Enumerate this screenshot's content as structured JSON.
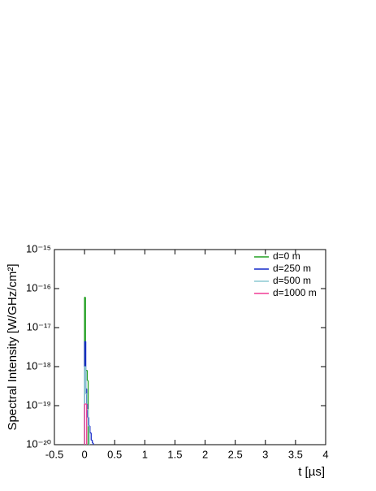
{
  "chart_data": {
    "type": "line",
    "drawstyle": "steps-post",
    "log_y": true,
    "xlabel": "t [µs]",
    "ylabel": "Spectral Intensity [W/GHz/cm²]",
    "xlim": [
      -0.5,
      4
    ],
    "xticks": [
      -0.5,
      0,
      0.5,
      1,
      1.5,
      2,
      2.5,
      3,
      3.5,
      4
    ],
    "ylim": [
      1e-20,
      1e-15
    ],
    "yticks": [
      {
        "value": 1e-20,
        "label": "10⁻²⁰"
      },
      {
        "value": 1e-19,
        "label": "10⁻¹⁹"
      },
      {
        "value": 1e-18,
        "label": "10⁻¹⁸"
      },
      {
        "value": 1e-17,
        "label": "10⁻¹⁷"
      },
      {
        "value": 1e-16,
        "label": "10⁻¹⁶"
      },
      {
        "value": 1e-15,
        "label": "10⁻¹⁵"
      }
    ],
    "legend": "upper right",
    "series": [
      {
        "name": "d=0 m",
        "color": "#22a022",
        "x": [
          0,
          0,
          0.015,
          0.045,
          0.06
        ],
        "values": [
          1e-20,
          6e-17,
          8e-19,
          4.4e-19,
          1e-20
        ]
      },
      {
        "name": "d=250 m",
        "color": "#1428c8",
        "x": [
          0,
          0,
          0.02,
          0.035,
          0.05,
          0.07,
          0.09,
          0.11,
          0.13,
          0.145
        ],
        "values": [
          1e-20,
          4.4e-18,
          2.7e-19,
          1.1e-19,
          5e-20,
          3e-20,
          2e-20,
          1.3e-20,
          1.1e-20,
          1e-20
        ]
      },
      {
        "name": "d=500 m",
        "color": "#8cc8d2",
        "x": [
          0,
          0,
          0.02,
          0.04,
          0.06,
          0.08
        ],
        "values": [
          1e-20,
          1e-18,
          2e-19,
          8e-20,
          3e-20,
          1e-20
        ]
      },
      {
        "name": "d=1000 m",
        "color": "#f03c96",
        "x": [
          0,
          0,
          0.035
        ],
        "values": [
          1e-20,
          1.1e-19,
          1e-20
        ]
      }
    ]
  }
}
